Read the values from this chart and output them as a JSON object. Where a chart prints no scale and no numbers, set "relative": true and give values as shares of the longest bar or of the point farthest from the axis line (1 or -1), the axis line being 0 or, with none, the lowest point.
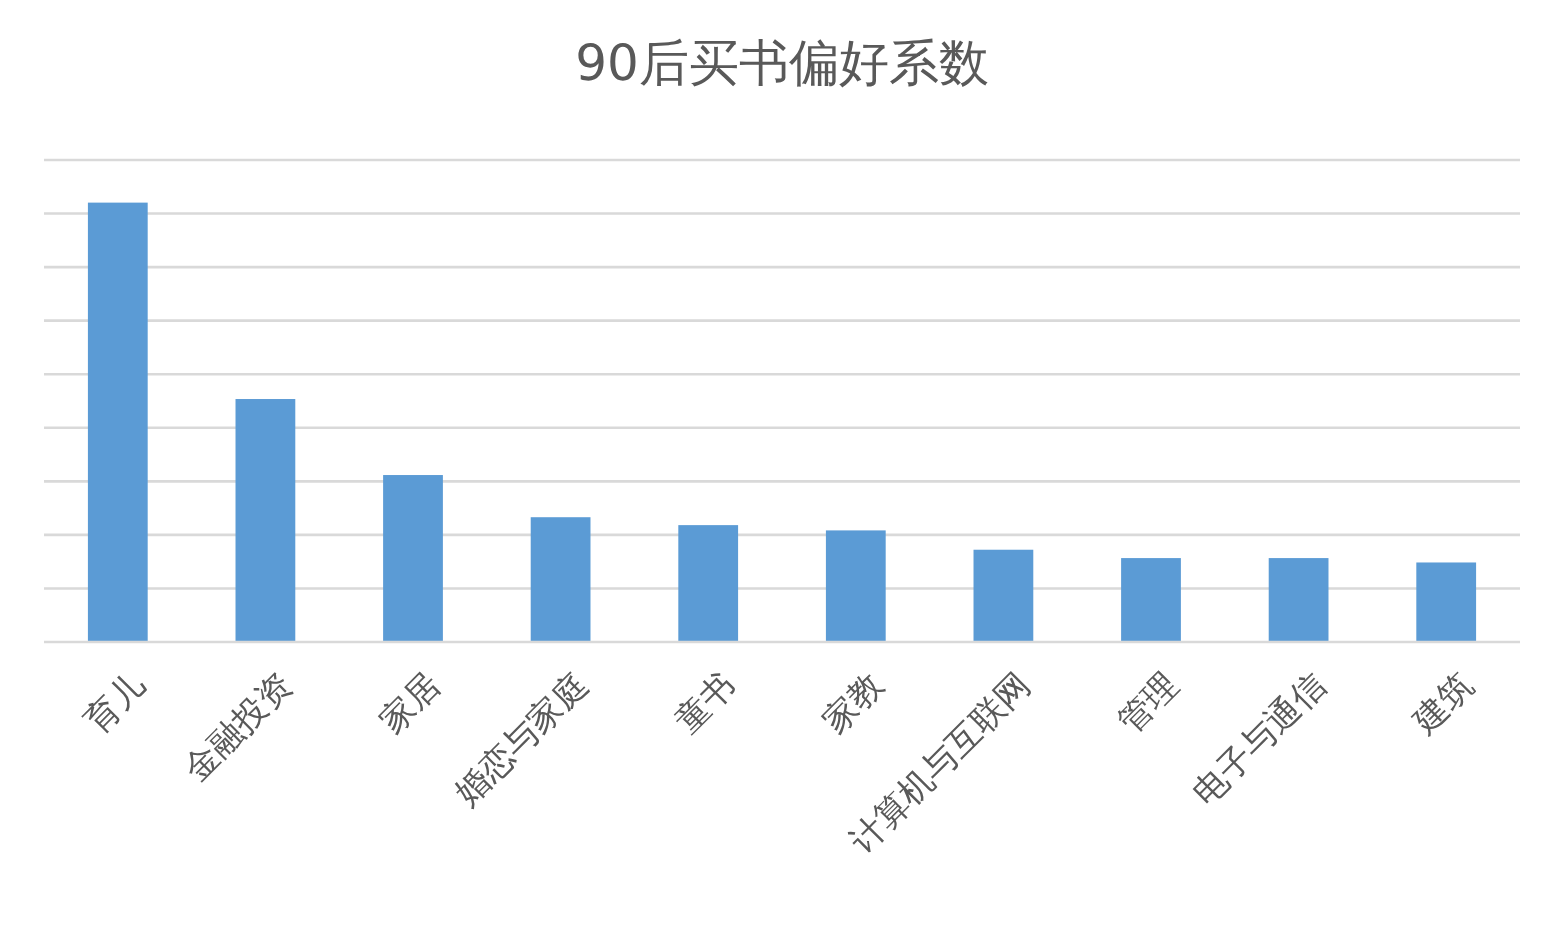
{
  "chart_data": {
    "type": "bar",
    "title": "90后买书偏好系数",
    "relative": true,
    "grid": "y",
    "color": "#5b9bd5",
    "categories": [
      "育儿",
      "金融投资",
      "家居",
      "婚恋与家庭",
      "童书",
      "家教",
      "计算机与互联网",
      "管理",
      "电子与通信",
      "建筑"
    ],
    "values": [
      1,
      0.553,
      0.38,
      0.284,
      0.266,
      0.254,
      0.21,
      0.191,
      0.191,
      0.181
    ]
  }
}
